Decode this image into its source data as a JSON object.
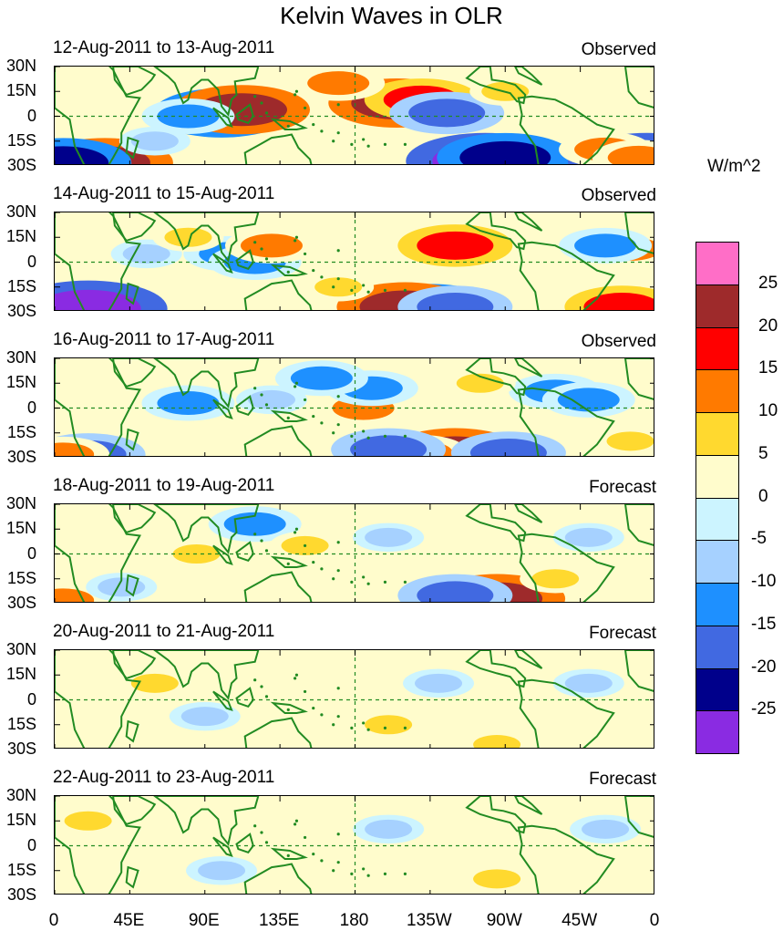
{
  "chart_data": {
    "type": "heatmap",
    "title": "Kelvin Waves in OLR",
    "units": "W/m^2",
    "x_ticks": [
      "0",
      "45E",
      "90E",
      "135E",
      "180",
      "135W",
      "90W",
      "45W",
      "0"
    ],
    "y_ticks": [
      "30N",
      "15N",
      "0",
      "15S",
      "30S"
    ],
    "colorbar": {
      "levels": [
        "25",
        "20",
        "15",
        "10",
        "5",
        "0",
        "-5",
        "-10",
        "-15",
        "-20",
        "-25"
      ],
      "colors": [
        "#ff6ec7",
        "#9e2a2b",
        "#ff0000",
        "#ff7a00",
        "#ffd92f",
        "#fffccc",
        "#ccf4ff",
        "#a6d1ff",
        "#1e90ff",
        "#4169e1",
        "#00008b",
        "#8a2be2"
      ]
    },
    "panels": [
      {
        "date": "12-Aug-2011 to 13-Aug-2011",
        "status": "Observed",
        "anomalies": [
          {
            "lon": 100,
            "lat": 2,
            "value": -20
          },
          {
            "lon": 112,
            "lat": 4,
            "value": 20
          },
          {
            "lon": 205,
            "lat": 8,
            "value": 20
          },
          {
            "lon": 220,
            "lat": 10,
            "value": 15
          },
          {
            "lon": 235,
            "lat": 2,
            "value": -15
          },
          {
            "lon": 258,
            "lat": -27,
            "value": -25
          },
          {
            "lon": 270,
            "lat": -25,
            "value": -20
          },
          {
            "lon": 30,
            "lat": -28,
            "value": 20
          },
          {
            "lon": 5,
            "lat": -28,
            "value": -20
          },
          {
            "lon": 355,
            "lat": -27,
            "value": -25
          },
          {
            "lon": 80,
            "lat": 0,
            "value": -10
          },
          {
            "lon": 170,
            "lat": 20,
            "value": 10
          },
          {
            "lon": 330,
            "lat": -20,
            "value": 10
          },
          {
            "lon": 350,
            "lat": -25,
            "value": 10
          },
          {
            "lon": 270,
            "lat": 15,
            "value": 5
          },
          {
            "lon": 60,
            "lat": -15,
            "value": -5
          }
        ]
      },
      {
        "date": "14-Aug-2011 to 15-Aug-2011",
        "status": "Observed",
        "anomalies": [
          {
            "lon": 20,
            "lat": -28,
            "value": -25
          },
          {
            "lon": 225,
            "lat": -28,
            "value": -20
          },
          {
            "lon": 210,
            "lat": -27,
            "value": 20
          },
          {
            "lon": 240,
            "lat": 10,
            "value": 15
          },
          {
            "lon": 240,
            "lat": -27,
            "value": -15
          },
          {
            "lon": 340,
            "lat": -27,
            "value": 15
          },
          {
            "lon": 345,
            "lat": 8,
            "value": 10
          },
          {
            "lon": 105,
            "lat": 5,
            "value": -10
          },
          {
            "lon": 120,
            "lat": 0,
            "value": -10
          },
          {
            "lon": 130,
            "lat": 10,
            "value": 10
          },
          {
            "lon": 330,
            "lat": 10,
            "value": -10
          },
          {
            "lon": 55,
            "lat": 5,
            "value": -5
          },
          {
            "lon": 80,
            "lat": 15,
            "value": 5
          },
          {
            "lon": 170,
            "lat": -15,
            "value": 5
          }
        ]
      },
      {
        "date": "16-Aug-2011 to 17-Aug-2011",
        "status": "Observed",
        "anomalies": [
          {
            "lon": 240,
            "lat": -27,
            "value": 20
          },
          {
            "lon": 220,
            "lat": -27,
            "value": 10
          },
          {
            "lon": 200,
            "lat": -25,
            "value": -15
          },
          {
            "lon": 272,
            "lat": -27,
            "value": -15
          },
          {
            "lon": 20,
            "lat": -28,
            "value": -15
          },
          {
            "lon": 5,
            "lat": -28,
            "value": 10
          },
          {
            "lon": 185,
            "lat": 0,
            "value": 10
          },
          {
            "lon": 190,
            "lat": 12,
            "value": -10
          },
          {
            "lon": 160,
            "lat": 18,
            "value": -10
          },
          {
            "lon": 80,
            "lat": 3,
            "value": -10
          },
          {
            "lon": 300,
            "lat": 10,
            "value": -10
          },
          {
            "lon": 320,
            "lat": 5,
            "value": -10
          },
          {
            "lon": 345,
            "lat": -20,
            "value": 5
          },
          {
            "lon": 130,
            "lat": 5,
            "value": -5
          },
          {
            "lon": 255,
            "lat": 15,
            "value": 5
          }
        ]
      },
      {
        "date": "18-Aug-2011 to 19-Aug-2011",
        "status": "Forecast",
        "anomalies": [
          {
            "lon": 265,
            "lat": -27,
            "value": 20
          },
          {
            "lon": 240,
            "lat": -25,
            "value": -15
          },
          {
            "lon": 5,
            "lat": -28,
            "value": 10
          },
          {
            "lon": 120,
            "lat": 18,
            "value": -10
          },
          {
            "lon": 85,
            "lat": 0,
            "value": 5
          },
          {
            "lon": 200,
            "lat": 10,
            "value": -5
          },
          {
            "lon": 320,
            "lat": 10,
            "value": -5
          },
          {
            "lon": 150,
            "lat": 5,
            "value": 5
          },
          {
            "lon": 40,
            "lat": -20,
            "value": -5
          },
          {
            "lon": 300,
            "lat": -15,
            "value": 5
          }
        ]
      },
      {
        "date": "20-Aug-2011 to 21-Aug-2011",
        "status": "Forecast",
        "anomalies": [
          {
            "lon": 265,
            "lat": -27,
            "value": 5
          },
          {
            "lon": 200,
            "lat": -15,
            "value": 5
          },
          {
            "lon": 320,
            "lat": 10,
            "value": -5
          },
          {
            "lon": 230,
            "lat": 10,
            "value": -5
          },
          {
            "lon": 60,
            "lat": 10,
            "value": 5
          },
          {
            "lon": 90,
            "lat": -10,
            "value": -5
          }
        ]
      },
      {
        "date": "22-Aug-2011 to 23-Aug-2011",
        "status": "Forecast",
        "anomalies": [
          {
            "lon": 265,
            "lat": -20,
            "value": 5
          },
          {
            "lon": 330,
            "lat": 10,
            "value": -5
          },
          {
            "lon": 200,
            "lat": 10,
            "value": -5
          },
          {
            "lon": 100,
            "lat": -15,
            "value": -5
          },
          {
            "lon": 20,
            "lat": 15,
            "value": 5
          }
        ]
      }
    ]
  },
  "colors": {
    "background": "#ffffff",
    "map_zero": "#fffccc",
    "coastline": "#228b22",
    "dashed_lines": "#228b22"
  }
}
